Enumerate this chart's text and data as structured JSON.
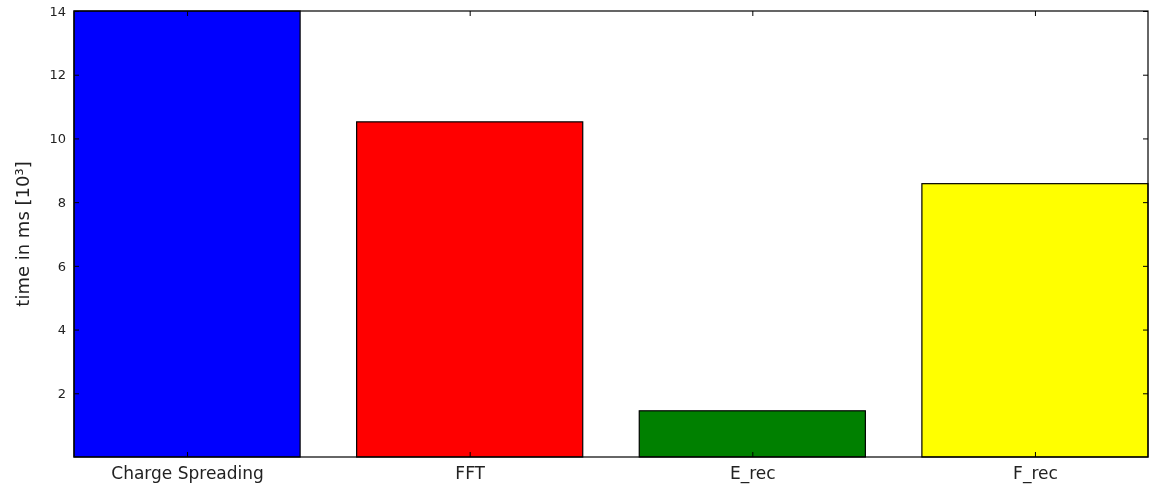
{
  "chart_data": {
    "type": "bar",
    "ylabel": "time in ms [10³]",
    "categories": [
      "Charge Spreading",
      "FFT",
      "E_rec",
      "F_rec"
    ],
    "values": [
      14,
      10.52,
      1.45,
      8.58
    ],
    "colors": [
      "#0000ff",
      "#ff0000",
      "#008000",
      "#ffff00"
    ],
    "ylim": [
      0,
      14
    ],
    "yticks": [
      2,
      4,
      6,
      8,
      10,
      12,
      14
    ],
    "grid": false
  }
}
